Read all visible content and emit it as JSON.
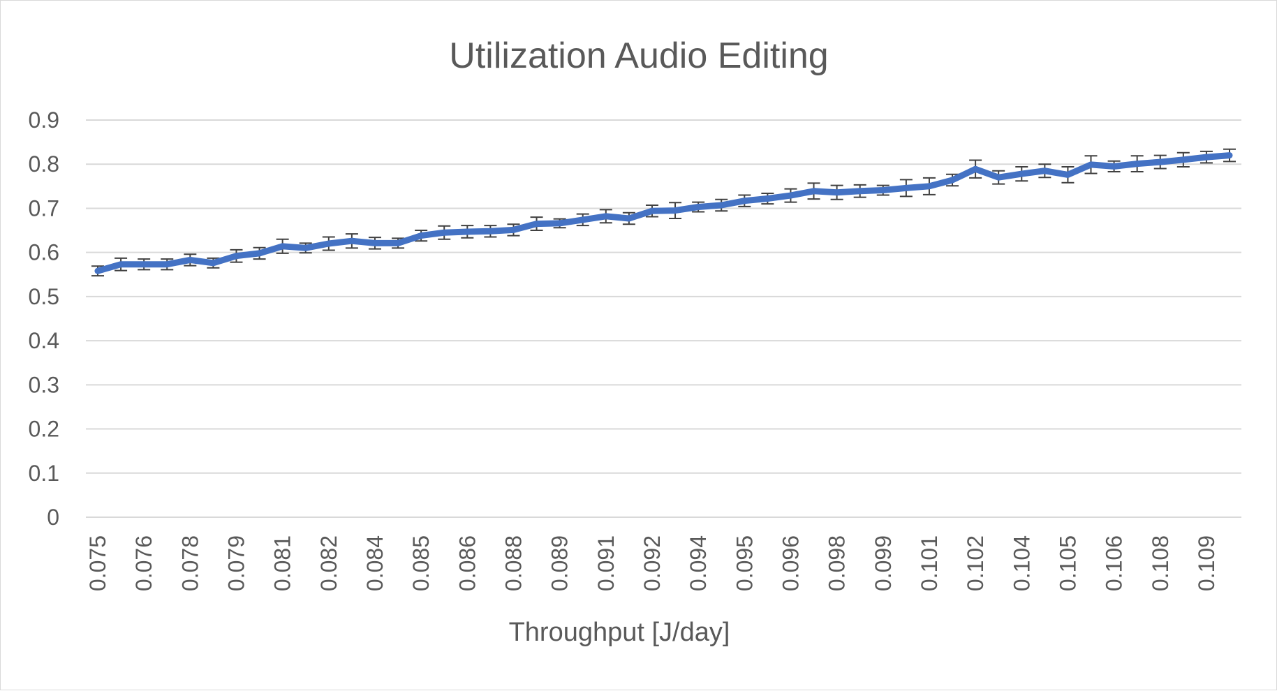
{
  "chart_data": {
    "type": "line",
    "title": "Utilization Audio Editing",
    "xlabel": "Throughput [J/day]",
    "ylabel": "",
    "ylim": [
      0,
      0.9
    ],
    "yticks": [
      "0",
      "0.1",
      "0.2",
      "0.3",
      "0.4",
      "0.5",
      "0.6",
      "0.7",
      "0.8",
      "0.9"
    ],
    "grid": true,
    "legend": "none",
    "x_tick_labels": [
      "0.075",
      "0.076",
      "0.078",
      "0.079",
      "0.081",
      "0.082",
      "0.084",
      "0.085",
      "0.086",
      "0.088",
      "0.089",
      "0.091",
      "0.092",
      "0.094",
      "0.095",
      "0.096",
      "0.098",
      "0.099",
      "0.101",
      "0.102",
      "0.104",
      "0.105",
      "0.106",
      "0.108",
      "0.109"
    ],
    "series": [
      {
        "color": "#4472c4",
        "values": [
          0.558,
          0.573,
          0.573,
          0.573,
          0.583,
          0.576,
          0.592,
          0.598,
          0.614,
          0.61,
          0.62,
          0.626,
          0.621,
          0.621,
          0.638,
          0.645,
          0.647,
          0.648,
          0.651,
          0.665,
          0.666,
          0.674,
          0.682,
          0.677,
          0.694,
          0.695,
          0.703,
          0.707,
          0.717,
          0.722,
          0.729,
          0.739,
          0.736,
          0.739,
          0.741,
          0.746,
          0.75,
          0.764,
          0.789,
          0.77,
          0.778,
          0.785,
          0.776,
          0.799,
          0.795,
          0.801,
          0.805,
          0.81,
          0.816,
          0.82
        ],
        "errors": [
          0.011,
          0.014,
          0.012,
          0.012,
          0.013,
          0.011,
          0.014,
          0.013,
          0.016,
          0.011,
          0.015,
          0.016,
          0.013,
          0.011,
          0.012,
          0.015,
          0.014,
          0.013,
          0.013,
          0.015,
          0.01,
          0.013,
          0.015,
          0.013,
          0.013,
          0.018,
          0.011,
          0.013,
          0.013,
          0.012,
          0.015,
          0.018,
          0.016,
          0.014,
          0.011,
          0.019,
          0.019,
          0.013,
          0.02,
          0.015,
          0.016,
          0.015,
          0.018,
          0.02,
          0.012,
          0.018,
          0.015,
          0.016,
          0.013,
          0.014
        ]
      }
    ]
  }
}
